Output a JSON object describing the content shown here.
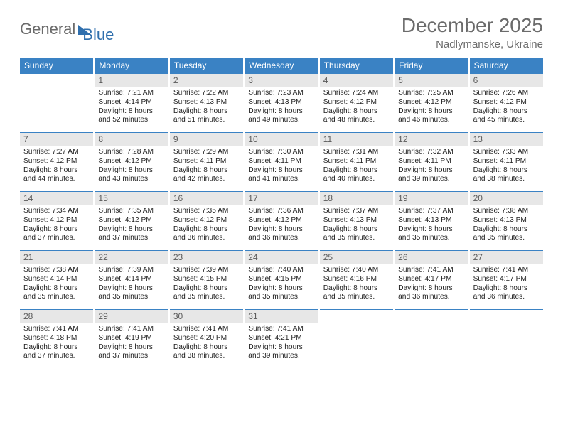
{
  "logo": {
    "text1": "General",
    "text2": "Blue"
  },
  "title": "December 2025",
  "location": "Nadlymanske, Ukraine",
  "colors": {
    "header_bg": "#3a82c4",
    "header_text": "#ffffff",
    "daynum_bg": "#e7e7e7",
    "daynum_text": "#5a5a5a",
    "border": "#3a82c4",
    "title_color": "#6b6b6b",
    "logo_gray": "#6b6b6b",
    "logo_blue": "#2f6fad"
  },
  "daysOfWeek": [
    "Sunday",
    "Monday",
    "Tuesday",
    "Wednesday",
    "Thursday",
    "Friday",
    "Saturday"
  ],
  "weeks": [
    [
      {
        "blank": true
      },
      {
        "d": "1",
        "sr": "7:21 AM",
        "ss": "4:14 PM",
        "dl": "8 hours and 52 minutes."
      },
      {
        "d": "2",
        "sr": "7:22 AM",
        "ss": "4:13 PM",
        "dl": "8 hours and 51 minutes."
      },
      {
        "d": "3",
        "sr": "7:23 AM",
        "ss": "4:13 PM",
        "dl": "8 hours and 49 minutes."
      },
      {
        "d": "4",
        "sr": "7:24 AM",
        "ss": "4:12 PM",
        "dl": "8 hours and 48 minutes."
      },
      {
        "d": "5",
        "sr": "7:25 AM",
        "ss": "4:12 PM",
        "dl": "8 hours and 46 minutes."
      },
      {
        "d": "6",
        "sr": "7:26 AM",
        "ss": "4:12 PM",
        "dl": "8 hours and 45 minutes."
      }
    ],
    [
      {
        "d": "7",
        "sr": "7:27 AM",
        "ss": "4:12 PM",
        "dl": "8 hours and 44 minutes."
      },
      {
        "d": "8",
        "sr": "7:28 AM",
        "ss": "4:12 PM",
        "dl": "8 hours and 43 minutes."
      },
      {
        "d": "9",
        "sr": "7:29 AM",
        "ss": "4:11 PM",
        "dl": "8 hours and 42 minutes."
      },
      {
        "d": "10",
        "sr": "7:30 AM",
        "ss": "4:11 PM",
        "dl": "8 hours and 41 minutes."
      },
      {
        "d": "11",
        "sr": "7:31 AM",
        "ss": "4:11 PM",
        "dl": "8 hours and 40 minutes."
      },
      {
        "d": "12",
        "sr": "7:32 AM",
        "ss": "4:11 PM",
        "dl": "8 hours and 39 minutes."
      },
      {
        "d": "13",
        "sr": "7:33 AM",
        "ss": "4:11 PM",
        "dl": "8 hours and 38 minutes."
      }
    ],
    [
      {
        "d": "14",
        "sr": "7:34 AM",
        "ss": "4:12 PM",
        "dl": "8 hours and 37 minutes."
      },
      {
        "d": "15",
        "sr": "7:35 AM",
        "ss": "4:12 PM",
        "dl": "8 hours and 37 minutes."
      },
      {
        "d": "16",
        "sr": "7:35 AM",
        "ss": "4:12 PM",
        "dl": "8 hours and 36 minutes."
      },
      {
        "d": "17",
        "sr": "7:36 AM",
        "ss": "4:12 PM",
        "dl": "8 hours and 36 minutes."
      },
      {
        "d": "18",
        "sr": "7:37 AM",
        "ss": "4:13 PM",
        "dl": "8 hours and 35 minutes."
      },
      {
        "d": "19",
        "sr": "7:37 AM",
        "ss": "4:13 PM",
        "dl": "8 hours and 35 minutes."
      },
      {
        "d": "20",
        "sr": "7:38 AM",
        "ss": "4:13 PM",
        "dl": "8 hours and 35 minutes."
      }
    ],
    [
      {
        "d": "21",
        "sr": "7:38 AM",
        "ss": "4:14 PM",
        "dl": "8 hours and 35 minutes."
      },
      {
        "d": "22",
        "sr": "7:39 AM",
        "ss": "4:14 PM",
        "dl": "8 hours and 35 minutes."
      },
      {
        "d": "23",
        "sr": "7:39 AM",
        "ss": "4:15 PM",
        "dl": "8 hours and 35 minutes."
      },
      {
        "d": "24",
        "sr": "7:40 AM",
        "ss": "4:15 PM",
        "dl": "8 hours and 35 minutes."
      },
      {
        "d": "25",
        "sr": "7:40 AM",
        "ss": "4:16 PM",
        "dl": "8 hours and 35 minutes."
      },
      {
        "d": "26",
        "sr": "7:41 AM",
        "ss": "4:17 PM",
        "dl": "8 hours and 36 minutes."
      },
      {
        "d": "27",
        "sr": "7:41 AM",
        "ss": "4:17 PM",
        "dl": "8 hours and 36 minutes."
      }
    ],
    [
      {
        "d": "28",
        "sr": "7:41 AM",
        "ss": "4:18 PM",
        "dl": "8 hours and 37 minutes."
      },
      {
        "d": "29",
        "sr": "7:41 AM",
        "ss": "4:19 PM",
        "dl": "8 hours and 37 minutes."
      },
      {
        "d": "30",
        "sr": "7:41 AM",
        "ss": "4:20 PM",
        "dl": "8 hours and 38 minutes."
      },
      {
        "d": "31",
        "sr": "7:41 AM",
        "ss": "4:21 PM",
        "dl": "8 hours and 39 minutes."
      },
      {
        "blank": true
      },
      {
        "blank": true
      },
      {
        "blank": true
      }
    ]
  ],
  "labels": {
    "sunrise": "Sunrise:",
    "sunset": "Sunset:",
    "daylight": "Daylight:"
  }
}
